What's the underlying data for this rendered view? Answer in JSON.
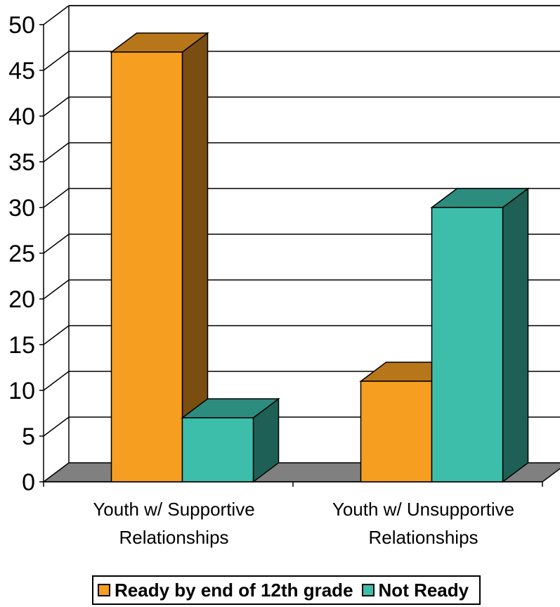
{
  "chart_data": {
    "type": "bar",
    "categories": [
      "Youth w/ Supportive Relationships",
      "Youth w/ Unsupportive Relationships"
    ],
    "category_lines": [
      [
        "Youth w/ Supportive",
        "Relationships"
      ],
      [
        "Youth w/ Unsupportive",
        "Relationships"
      ]
    ],
    "series": [
      {
        "name": "Ready by end of 12th grade",
        "values": [
          47,
          11
        ],
        "color": "#F59E20",
        "top_color": "#B8761A",
        "side_color": "#7A4E11"
      },
      {
        "name": "Not Ready",
        "values": [
          7,
          30
        ],
        "color": "#3CBEAB",
        "top_color": "#2C8C7E",
        "side_color": "#1E6055"
      }
    ],
    "y_ticks": [
      "0",
      "5",
      "10",
      "15",
      "20",
      "25",
      "30",
      "35",
      "40",
      "45",
      "50"
    ],
    "ylim": [
      0,
      50
    ],
    "grid": true,
    "three_d": true,
    "legend_position": "bottom",
    "title": "",
    "xlabel": "",
    "ylabel": ""
  }
}
